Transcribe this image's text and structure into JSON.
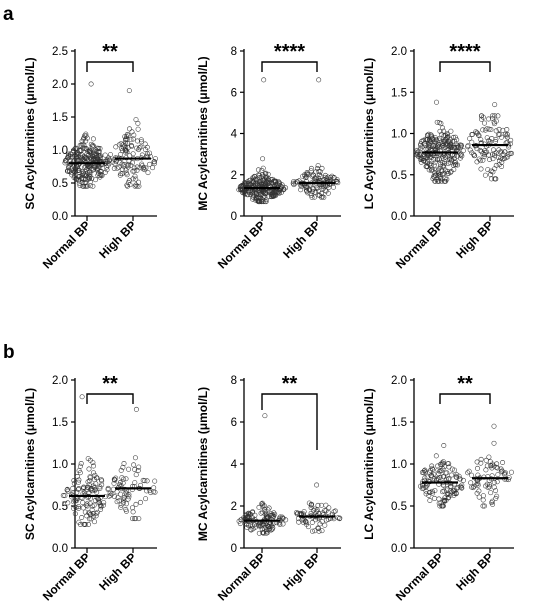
{
  "panels": [
    {
      "label": "a"
    },
    {
      "label": "b"
    }
  ],
  "chart_data": [
    {
      "type": "scatter",
      "panel": "a",
      "ylabel": "SC Acylcarnitines (μmol/L)",
      "ylim": [
        0,
        2.5
      ],
      "yticks": [
        0,
        0.5,
        1.0,
        1.5,
        2.0,
        2.5
      ],
      "ytick_labels": [
        "0.0",
        "0.5",
        "1.0",
        "1.5",
        "2.0",
        "2.5"
      ],
      "categories": [
        "Normal BP",
        "High BP"
      ],
      "series": [
        {
          "category": "Normal BP",
          "median": 0.8,
          "min": 0.45,
          "max": 2.0,
          "n": 260
        },
        {
          "category": "High BP",
          "median": 0.87,
          "min": 0.45,
          "max": 1.9,
          "n": 120
        }
      ],
      "significance": "**"
    },
    {
      "type": "scatter",
      "panel": "a",
      "ylabel": "MC Acylcarnitines (μmol/L)",
      "ylim": [
        0,
        8
      ],
      "yticks": [
        0,
        2,
        4,
        6,
        8
      ],
      "ytick_labels": [
        "0",
        "2",
        "4",
        "6",
        "8"
      ],
      "categories": [
        "Normal BP",
        "High BP"
      ],
      "series": [
        {
          "category": "Normal BP",
          "median": 1.35,
          "min": 0.7,
          "max": 6.6,
          "n": 260
        },
        {
          "category": "High BP",
          "median": 1.6,
          "min": 0.9,
          "max": 6.6,
          "n": 120
        }
      ],
      "significance": "****"
    },
    {
      "type": "scatter",
      "panel": "a",
      "ylabel": "LC Acylcarnitines (μmol/L)",
      "ylim": [
        0,
        2.0
      ],
      "yticks": [
        0,
        0.5,
        1.0,
        1.5,
        2.0
      ],
      "ytick_labels": [
        "0.0",
        "0.5",
        "1.0",
        "1.5",
        "2.0"
      ],
      "categories": [
        "Normal BP",
        "High BP"
      ],
      "series": [
        {
          "category": "Normal BP",
          "median": 0.77,
          "min": 0.42,
          "max": 1.38,
          "n": 260
        },
        {
          "category": "High BP",
          "median": 0.86,
          "min": 0.45,
          "max": 1.35,
          "n": 120
        }
      ],
      "significance": "****"
    },
    {
      "type": "scatter",
      "panel": "b",
      "ylabel": "SC Acylcarnitines (μmol/L)",
      "ylim": [
        0,
        2.0
      ],
      "yticks": [
        0,
        0.5,
        1.0,
        1.5,
        2.0
      ],
      "ytick_labels": [
        "0.0",
        "0.5",
        "1.0",
        "1.5",
        "2.0"
      ],
      "categories": [
        "Normal BP",
        "High BP"
      ],
      "series": [
        {
          "category": "Normal BP",
          "median": 0.62,
          "min": 0.28,
          "max": 1.8,
          "n": 130
        },
        {
          "category": "High BP",
          "median": 0.71,
          "min": 0.35,
          "max": 1.65,
          "n": 75
        }
      ],
      "significance": "**"
    },
    {
      "type": "scatter",
      "panel": "b",
      "ylabel": "MC Acylcarnitines (μmol/L)",
      "ylim": [
        0,
        8
      ],
      "yticks": [
        0,
        2,
        4,
        6,
        8
      ],
      "ytick_labels": [
        "0",
        "2",
        "4",
        "6",
        "8"
      ],
      "categories": [
        "Normal BP",
        "High BP"
      ],
      "series": [
        {
          "category": "Normal BP",
          "median": 1.3,
          "min": 0.7,
          "max": 6.3,
          "n": 130
        },
        {
          "category": "High BP",
          "median": 1.5,
          "min": 0.8,
          "max": 3.0,
          "n": 75
        }
      ],
      "significance": "**"
    },
    {
      "type": "scatter",
      "panel": "b",
      "ylabel": "LC Acylcarnitines (μmol/L)",
      "ylim": [
        0,
        2.0
      ],
      "yticks": [
        0,
        0.5,
        1.0,
        1.5,
        2.0
      ],
      "ytick_labels": [
        "0.0",
        "0.5",
        "1.0",
        "1.5",
        "2.0"
      ],
      "categories": [
        "Normal BP",
        "High BP"
      ],
      "series": [
        {
          "category": "Normal BP",
          "median": 0.78,
          "min": 0.5,
          "max": 1.22,
          "n": 130
        },
        {
          "category": "High BP",
          "median": 0.83,
          "min": 0.5,
          "max": 1.45,
          "n": 75
        }
      ],
      "significance": "**"
    }
  ]
}
